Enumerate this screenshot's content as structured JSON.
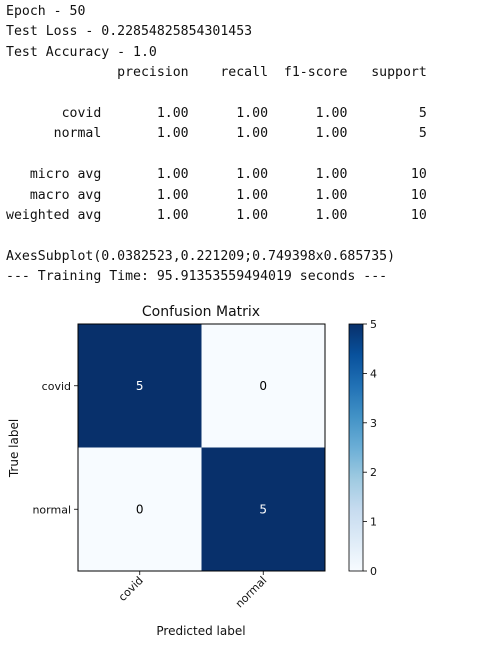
{
  "output": {
    "epoch_line": "Epoch - 50",
    "test_loss_line": "Test Loss - 0.22854825854301453",
    "test_accuracy_line": "Test Accuracy - 1.0",
    "report": {
      "headers": [
        "precision",
        "recall",
        "f1-score",
        "support"
      ],
      "rows": [
        {
          "label": "covid",
          "values": [
            "1.00",
            "1.00",
            "1.00",
            "5"
          ]
        },
        {
          "label": "normal",
          "values": [
            "1.00",
            "1.00",
            "1.00",
            "5"
          ]
        },
        {
          "label": "micro avg",
          "values": [
            "1.00",
            "1.00",
            "1.00",
            "10"
          ]
        },
        {
          "label": "macro avg",
          "values": [
            "1.00",
            "1.00",
            "1.00",
            "10"
          ]
        },
        {
          "label": "weighted avg",
          "values": [
            "1.00",
            "1.00",
            "1.00",
            "10"
          ]
        }
      ]
    },
    "axes_repr_line": "AxesSubplot(0.0382523,0.221209;0.749398x0.685735)",
    "training_time_line": "--- Training Time: 95.91353559494019 seconds ---"
  },
  "chart_data": {
    "type": "heatmap",
    "title": "Confusion Matrix",
    "xlabel": "Predicted label",
    "ylabel": "True label",
    "x_categories": [
      "covid",
      "normal"
    ],
    "y_categories": [
      "covid",
      "normal"
    ],
    "values": [
      [
        5,
        0
      ],
      [
        0,
        5
      ]
    ],
    "colormap": "Blues",
    "colorbar": {
      "min": 0,
      "max": 5,
      "ticks": [
        0,
        1,
        2,
        3,
        4,
        5
      ]
    },
    "colors": {
      "high": "#08306b",
      "low": "#f7fbff",
      "text_on_dark": "#ffffff",
      "text_on_light": "#000000"
    }
  }
}
